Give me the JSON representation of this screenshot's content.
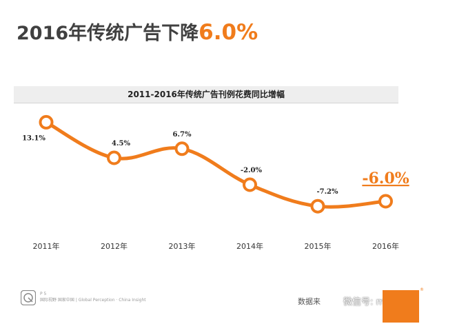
{
  "slide": {
    "title_prefix": "2016年传统广告下降",
    "title_highlight": "6.0%",
    "footer_page": "P 5",
    "footer_text": "国际视野  国家中国 | Global Perception · China Insight",
    "source_prefix": "数据来",
    "wechat_watermark": "微信号: mediam",
    "registered_mark": "®"
  },
  "colors": {
    "accent": "#f07c1c",
    "title_text": "#404040",
    "header_bg": "#eeeeee"
  },
  "chart_data": {
    "type": "line",
    "title": "2011-2016年传统广告刊例花费同比增幅",
    "categories": [
      "2011年",
      "2012年",
      "2013年",
      "2014年",
      "2015年",
      "2016年"
    ],
    "values": [
      13.1,
      4.5,
      6.7,
      -2.0,
      -7.2,
      -6.0
    ],
    "data_labels": [
      "13.1%",
      "4.5%",
      "6.7%",
      "-2.0%",
      "-7.2%",
      "-6.0%"
    ],
    "highlight_index": 5,
    "ylim": [
      -9,
      14
    ],
    "grid": false,
    "legend": "none",
    "xlabel": "",
    "ylabel": ""
  }
}
